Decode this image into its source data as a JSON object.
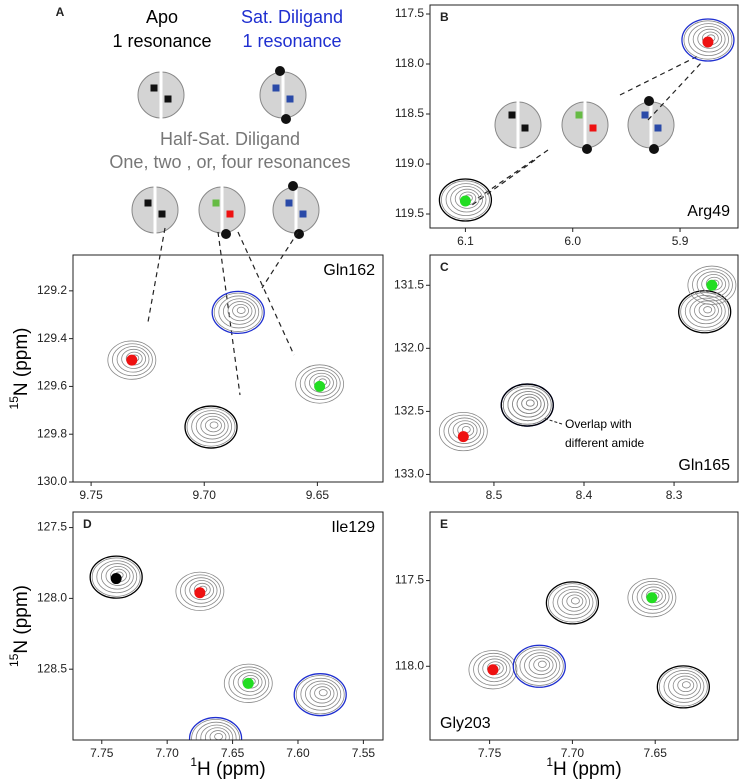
{
  "panel_a": {
    "letter": "A",
    "apo": [
      "Apo",
      "1 resonance"
    ],
    "saturated": [
      "Sat. Diligand",
      "1 resonance"
    ],
    "half_saturated": [
      "Half-Sat. Diligand",
      "One, two , or, four resonances"
    ]
  },
  "chart_data": [
    {
      "type": "scatter",
      "panel": "B",
      "label": "Arg49",
      "xlim": [
        6.133,
        5.846
      ],
      "ylim": [
        119.64,
        117.41
      ],
      "xticks": [
        6.1,
        {
          "value": 6,
          "label": "6.0"
        },
        5.9
      ],
      "yticks": [
        117.5,
        {
          "value": 118,
          "label": "118.0"
        },
        118.5,
        {
          "value": 119,
          "label": "119.0"
        },
        119.5
      ],
      "contours": [
        {
          "x": 6.1,
          "y": 119.36,
          "color": "#000000"
        },
        {
          "x": 5.874,
          "y": 117.76,
          "color": "#1f2fd0"
        }
      ],
      "points": [
        {
          "x": 6.1,
          "y": 119.37,
          "color": "#22dd22"
        },
        {
          "x": 5.874,
          "y": 117.78,
          "color": "#ee1111"
        }
      ]
    },
    {
      "type": "scatter",
      "label": "Gln162",
      "y_label": {
        "sup": "15",
        "text": "N (ppm)"
      },
      "xlim": [
        9.758,
        9.621
      ],
      "ylim": [
        130.0,
        129.05
      ],
      "xticks": [
        9.75,
        {
          "value": 9.7,
          "label": "9.70"
        },
        9.65
      ],
      "yticks": [
        129.2,
        129.4,
        129.6,
        129.8,
        {
          "value": 130,
          "label": "130.0"
        }
      ],
      "contours": [
        {
          "x": 9.732,
          "y": 129.49,
          "color": "gray"
        },
        {
          "x": 9.685,
          "y": 129.29,
          "color": "#1f2fd0"
        },
        {
          "x": 9.649,
          "y": 129.59,
          "color": "gray"
        },
        {
          "x": 9.697,
          "y": 129.77,
          "color": "#000000"
        }
      ],
      "points": [
        {
          "x": 9.732,
          "y": 129.49,
          "color": "#ee1111"
        },
        {
          "x": 9.649,
          "y": 129.6,
          "color": "#22dd22"
        }
      ]
    },
    {
      "type": "scatter",
      "panel": "C",
      "label": "Gln165",
      "annotation": [
        "Overlap with",
        "different amide"
      ],
      "xlim": [
        8.571,
        8.229
      ],
      "ylim": [
        133.06,
        131.26
      ],
      "xticks": [
        8.5,
        8.4,
        8.3
      ],
      "yticks": [
        131.5,
        {
          "value": 132,
          "label": "132.0"
        },
        132.5,
        {
          "value": 133,
          "label": "133.0"
        }
      ],
      "contours": [
        {
          "x": 8.534,
          "y": 132.66,
          "color": "gray"
        },
        {
          "x": 8.463,
          "y": 132.45,
          "color": "#1f2fd0"
        },
        {
          "x": 8.463,
          "y": 132.45,
          "color": "#000000"
        },
        {
          "x": 8.266,
          "y": 131.71,
          "color": "#000000"
        },
        {
          "x": 8.258,
          "y": 131.5,
          "color": "gray"
        }
      ],
      "points": [
        {
          "x": 8.534,
          "y": 132.7,
          "color": "#ee1111"
        },
        {
          "x": 8.258,
          "y": 131.5,
          "color": "#22dd22"
        }
      ]
    },
    {
      "type": "scatter",
      "panel": "D",
      "label": "Ile129",
      "y_label": {
        "sup": "15",
        "text": "N (ppm)"
      },
      "x_label": {
        "sup": "1",
        "text": "H (ppm)"
      },
      "xlim": [
        7.772,
        7.535
      ],
      "ylim": [
        129.0,
        127.39
      ],
      "xticks": [
        7.75,
        {
          "value": 7.7,
          "label": "7.70"
        },
        7.65,
        {
          "value": 7.6,
          "label": "7.60"
        },
        7.55
      ],
      "yticks": [
        127.5,
        {
          "value": 128,
          "label": "128.0"
        },
        128.5
      ],
      "contours": [
        {
          "x": 7.739,
          "y": 127.85,
          "color": "#000000"
        },
        {
          "x": 7.675,
          "y": 127.95,
          "color": "gray"
        },
        {
          "x": 7.638,
          "y": 128.6,
          "color": "gray"
        },
        {
          "x": 7.583,
          "y": 128.68,
          "color": "#1f2fd0"
        },
        {
          "x": 7.663,
          "y": 128.99,
          "color": "#1f2fd0"
        }
      ],
      "points": [
        {
          "x": 7.739,
          "y": 127.86,
          "color": "#000000"
        },
        {
          "x": 7.675,
          "y": 127.96,
          "color": "#ee1111"
        },
        {
          "x": 7.638,
          "y": 128.6,
          "color": "#22dd22"
        }
      ]
    },
    {
      "type": "scatter",
      "panel": "E",
      "label": "Gly203",
      "x_label": {
        "sup": "1",
        "text": "H (ppm)"
      },
      "xlim": [
        7.786,
        7.6
      ],
      "ylim": [
        118.43,
        117.1
      ],
      "xticks": [
        7.75,
        {
          "value": 7.7,
          "label": "7.70"
        },
        7.65
      ],
      "yticks": [
        117.5,
        {
          "value": 118,
          "label": "118.0"
        }
      ],
      "contours": [
        {
          "x": 7.748,
          "y": 118.02,
          "color": "gray"
        },
        {
          "x": 7.72,
          "y": 118.0,
          "color": "#1f2fd0"
        },
        {
          "x": 7.7,
          "y": 117.63,
          "color": "#000000"
        },
        {
          "x": 7.652,
          "y": 117.6,
          "color": "gray"
        },
        {
          "x": 7.633,
          "y": 118.12,
          "color": "#000000"
        }
      ],
      "points": [
        {
          "x": 7.748,
          "y": 118.02,
          "color": "#ee1111"
        },
        {
          "x": 7.652,
          "y": 117.6,
          "color": "#22dd22"
        }
      ]
    }
  ]
}
